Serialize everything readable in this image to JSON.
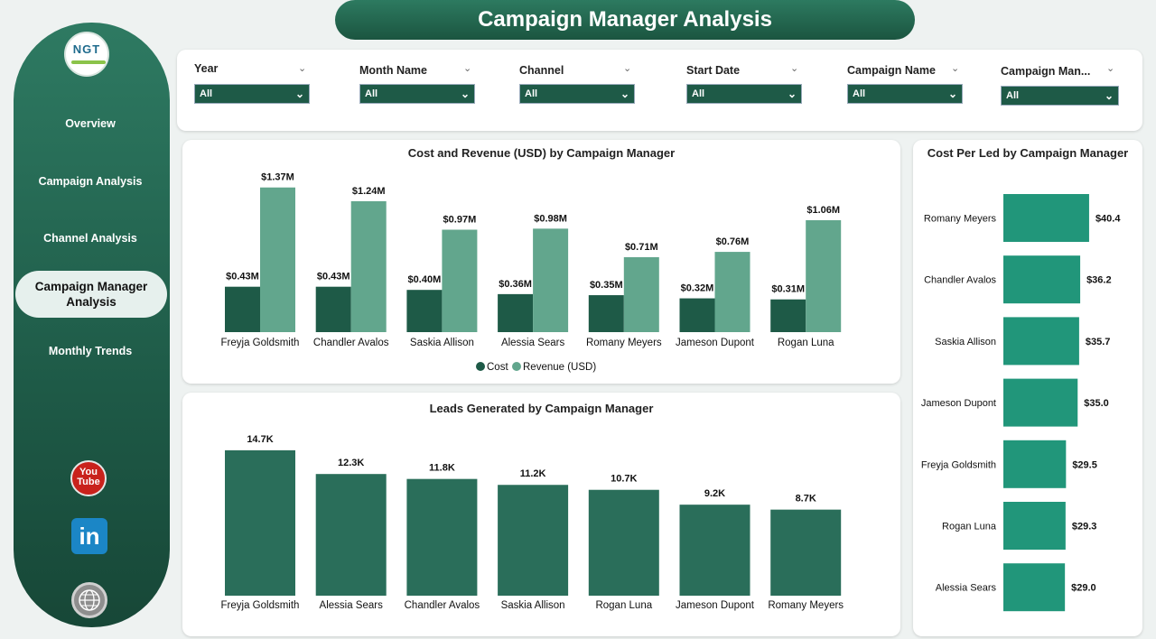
{
  "header": {
    "title": "Campaign Manager Analysis"
  },
  "logo": {
    "text": "NGT"
  },
  "sidebar": {
    "items": [
      {
        "label": "Overview"
      },
      {
        "label": "Campaign Analysis"
      },
      {
        "label": "Channel Analysis"
      },
      {
        "label": "Campaign Manager Analysis"
      },
      {
        "label": "Monthly Trends"
      }
    ]
  },
  "social": {
    "youtube_text": "You Tube",
    "linkedin_text": "in"
  },
  "filters": [
    {
      "label": "Year",
      "value": "All"
    },
    {
      "label": "Month Name",
      "value": "All"
    },
    {
      "label": "Channel",
      "value": "All"
    },
    {
      "label": "Start Date",
      "value": "All"
    },
    {
      "label": "Campaign Name",
      "value": "All"
    },
    {
      "label": "Campaign Man...",
      "value": "All"
    }
  ],
  "colors": {
    "cost": "#1e5a47",
    "revenue": "#62a68d",
    "leads": "#2a6e5a",
    "cpl": "#21967a"
  },
  "chart_data": [
    {
      "type": "bar",
      "title": "Cost and Revenue (USD) by Campaign Manager",
      "categories": [
        "Freyja Goldsmith",
        "Chandler Avalos",
        "Saskia Allison",
        "Alessia Sears",
        "Romany Meyers",
        "Jameson Dupont",
        "Rogan Luna"
      ],
      "series": [
        {
          "name": "Cost",
          "values": [
            0.43,
            0.43,
            0.4,
            0.36,
            0.35,
            0.32,
            0.31
          ],
          "labels": [
            "$0.43M",
            "$0.43M",
            "$0.40M",
            "$0.36M",
            "$0.35M",
            "$0.32M",
            "$0.31M"
          ]
        },
        {
          "name": "Revenue (USD)",
          "values": [
            1.37,
            1.24,
            0.97,
            0.98,
            0.71,
            0.76,
            1.06
          ],
          "labels": [
            "$1.37M",
            "$1.24M",
            "$0.97M",
            "$0.98M",
            "$0.71M",
            "$0.76M",
            "$1.06M"
          ]
        }
      ],
      "legend": "bottom"
    },
    {
      "type": "bar",
      "title": "Leads Generated by Campaign Manager",
      "categories": [
        "Freyja Goldsmith",
        "Alessia Sears",
        "Chandler Avalos",
        "Saskia Allison",
        "Rogan Luna",
        "Jameson Dupont",
        "Romany Meyers"
      ],
      "values": [
        14.7,
        12.3,
        11.8,
        11.2,
        10.7,
        9.2,
        8.7
      ],
      "labels": [
        "14.7K",
        "12.3K",
        "11.8K",
        "11.2K",
        "10.7K",
        "9.2K",
        "8.7K"
      ]
    },
    {
      "type": "bar",
      "orientation": "horizontal",
      "title": "Cost Per Led by Campaign Manager",
      "categories": [
        "Romany Meyers",
        "Chandler Avalos",
        "Saskia Allison",
        "Jameson Dupont",
        "Freyja Goldsmith",
        "Rogan Luna",
        "Alessia Sears"
      ],
      "values": [
        40.4,
        36.2,
        35.7,
        35.0,
        29.5,
        29.3,
        29.0
      ],
      "labels": [
        "$40.4",
        "$36.2",
        "$35.7",
        "$35.0",
        "$29.5",
        "$29.3",
        "$29.0"
      ]
    }
  ]
}
